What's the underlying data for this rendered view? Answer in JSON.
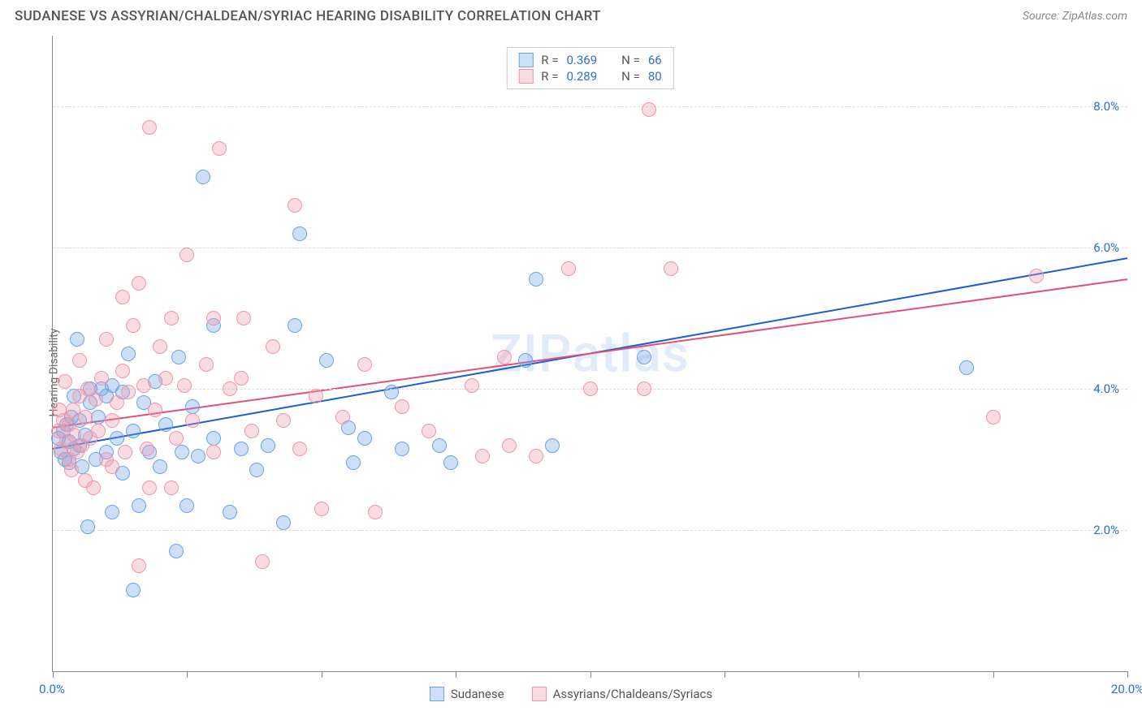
{
  "title": "SUDANESE VS ASSYRIAN/CHALDEAN/SYRIAC HEARING DISABILITY CORRELATION CHART",
  "source": "Source: ZipAtlas.com",
  "ylabel": "Hearing Disability",
  "watermark": "ZIPatlas",
  "chart": {
    "type": "scatter",
    "xlim": [
      0,
      20
    ],
    "ylim": [
      0,
      9
    ],
    "xticks_at": [
      0,
      2.5,
      5,
      7.5,
      10,
      12.5,
      15,
      17.5,
      20
    ],
    "xtick_labels": {
      "0": "0.0%",
      "20": "20.0%"
    },
    "yticks": [
      2,
      4,
      6,
      8
    ],
    "ytick_labels": [
      "2.0%",
      "4.0%",
      "6.0%",
      "8.0%"
    ],
    "grid_color": "#dddddd",
    "background_color": "#ffffff",
    "axis_color": "#888888",
    "tick_label_color": "#2b6fd6"
  },
  "series": [
    {
      "name": "Sudanese",
      "legend_label": "Sudanese",
      "fill": "rgba(109,163,232,0.35)",
      "stroke": "#6da3e8",
      "trend_color": "#1b5fd0",
      "R": "0.369",
      "N": "66",
      "trend": {
        "y_at_x0": 3.15,
        "y_at_x20": 5.85
      },
      "points": [
        [
          0.1,
          3.3
        ],
        [
          0.15,
          3.1
        ],
        [
          0.2,
          3.4
        ],
        [
          0.22,
          3.0
        ],
        [
          0.25,
          3.5
        ],
        [
          0.3,
          2.95
        ],
        [
          0.3,
          3.25
        ],
        [
          0.35,
          3.6
        ],
        [
          0.4,
          3.15
        ],
        [
          0.4,
          3.9
        ],
        [
          0.45,
          4.7
        ],
        [
          0.5,
          3.2
        ],
        [
          0.5,
          3.55
        ],
        [
          0.55,
          2.9
        ],
        [
          0.6,
          3.35
        ],
        [
          0.65,
          2.05
        ],
        [
          0.7,
          3.8
        ],
        [
          0.7,
          4.0
        ],
        [
          0.8,
          3.0
        ],
        [
          0.85,
          3.6
        ],
        [
          0.9,
          4.0
        ],
        [
          1.0,
          3.1
        ],
        [
          1.0,
          3.9
        ],
        [
          1.1,
          2.25
        ],
        [
          1.1,
          4.05
        ],
        [
          1.2,
          3.3
        ],
        [
          1.3,
          2.8
        ],
        [
          1.3,
          3.95
        ],
        [
          1.4,
          4.5
        ],
        [
          1.5,
          1.15
        ],
        [
          1.5,
          3.4
        ],
        [
          1.6,
          2.35
        ],
        [
          1.7,
          3.8
        ],
        [
          1.8,
          3.1
        ],
        [
          1.9,
          4.1
        ],
        [
          2.0,
          2.9
        ],
        [
          2.1,
          3.5
        ],
        [
          2.3,
          1.7
        ],
        [
          2.35,
          4.45
        ],
        [
          2.4,
          3.1
        ],
        [
          2.5,
          2.35
        ],
        [
          2.6,
          3.75
        ],
        [
          2.7,
          3.05
        ],
        [
          2.8,
          7.0
        ],
        [
          3.0,
          3.3
        ],
        [
          3.0,
          4.9
        ],
        [
          3.3,
          2.25
        ],
        [
          3.5,
          3.15
        ],
        [
          3.8,
          2.85
        ],
        [
          4.0,
          3.2
        ],
        [
          4.3,
          2.1
        ],
        [
          4.5,
          4.9
        ],
        [
          4.6,
          6.2
        ],
        [
          5.1,
          4.4
        ],
        [
          5.5,
          3.45
        ],
        [
          5.6,
          2.95
        ],
        [
          5.8,
          3.3
        ],
        [
          6.3,
          3.95
        ],
        [
          6.5,
          3.15
        ],
        [
          7.2,
          3.2
        ],
        [
          7.4,
          2.95
        ],
        [
          8.8,
          4.4
        ],
        [
          9.0,
          5.55
        ],
        [
          9.3,
          3.2
        ],
        [
          11.0,
          4.45
        ],
        [
          17.0,
          4.3
        ]
      ]
    },
    {
      "name": "Assyrians/Chaldeans/Syriacs",
      "legend_label": "Assyrians/Chaldeans/Syriacs",
      "fill": "rgba(239,151,172,0.35)",
      "stroke": "#ef97ac",
      "trend_color": "#e25078",
      "R": "0.289",
      "N": "80",
      "trend": {
        "y_at_x0": 3.45,
        "y_at_x20": 5.55
      },
      "points": [
        [
          0.1,
          3.4
        ],
        [
          0.12,
          3.7
        ],
        [
          0.15,
          3.15
        ],
        [
          0.2,
          3.55
        ],
        [
          0.22,
          4.1
        ],
        [
          0.25,
          3.25
        ],
        [
          0.3,
          3.0
        ],
        [
          0.3,
          3.5
        ],
        [
          0.35,
          2.85
        ],
        [
          0.38,
          3.7
        ],
        [
          0.4,
          3.35
        ],
        [
          0.45,
          3.1
        ],
        [
          0.5,
          3.9
        ],
        [
          0.5,
          4.4
        ],
        [
          0.55,
          3.2
        ],
        [
          0.6,
          2.7
        ],
        [
          0.6,
          3.6
        ],
        [
          0.65,
          4.0
        ],
        [
          0.7,
          3.3
        ],
        [
          0.75,
          2.6
        ],
        [
          0.8,
          3.85
        ],
        [
          0.85,
          3.4
        ],
        [
          0.9,
          4.15
        ],
        [
          1.0,
          3.0
        ],
        [
          1.0,
          4.7
        ],
        [
          1.1,
          2.9
        ],
        [
          1.1,
          3.55
        ],
        [
          1.2,
          3.8
        ],
        [
          1.3,
          4.25
        ],
        [
          1.3,
          5.3
        ],
        [
          1.35,
          3.1
        ],
        [
          1.4,
          3.95
        ],
        [
          1.5,
          4.9
        ],
        [
          1.6,
          1.5
        ],
        [
          1.6,
          5.5
        ],
        [
          1.7,
          4.05
        ],
        [
          1.75,
          3.15
        ],
        [
          1.8,
          2.6
        ],
        [
          1.8,
          7.7
        ],
        [
          1.9,
          3.7
        ],
        [
          2.0,
          4.6
        ],
        [
          2.1,
          4.15
        ],
        [
          2.2,
          5.0
        ],
        [
          2.2,
          2.6
        ],
        [
          2.3,
          3.3
        ],
        [
          2.45,
          4.05
        ],
        [
          2.5,
          5.9
        ],
        [
          2.6,
          3.55
        ],
        [
          2.85,
          4.35
        ],
        [
          3.0,
          5.0
        ],
        [
          3.0,
          3.1
        ],
        [
          3.1,
          7.4
        ],
        [
          3.3,
          4.0
        ],
        [
          3.5,
          4.15
        ],
        [
          3.55,
          5.0
        ],
        [
          3.7,
          3.4
        ],
        [
          3.9,
          1.55
        ],
        [
          4.1,
          4.6
        ],
        [
          4.3,
          3.55
        ],
        [
          4.5,
          6.6
        ],
        [
          4.6,
          3.15
        ],
        [
          4.9,
          3.9
        ],
        [
          5.0,
          2.3
        ],
        [
          5.4,
          3.6
        ],
        [
          5.8,
          4.35
        ],
        [
          6.0,
          2.25
        ],
        [
          6.5,
          3.75
        ],
        [
          7.0,
          3.4
        ],
        [
          7.8,
          4.05
        ],
        [
          8.0,
          3.05
        ],
        [
          8.4,
          4.45
        ],
        [
          8.5,
          3.2
        ],
        [
          9.0,
          3.05
        ],
        [
          9.6,
          5.7
        ],
        [
          10.0,
          4.0
        ],
        [
          11.0,
          4.0
        ],
        [
          11.1,
          7.95
        ],
        [
          11.5,
          5.7
        ],
        [
          17.5,
          3.6
        ],
        [
          18.3,
          5.6
        ]
      ]
    }
  ],
  "legend_top": {
    "R_label": "R =",
    "N_label": "N ="
  }
}
